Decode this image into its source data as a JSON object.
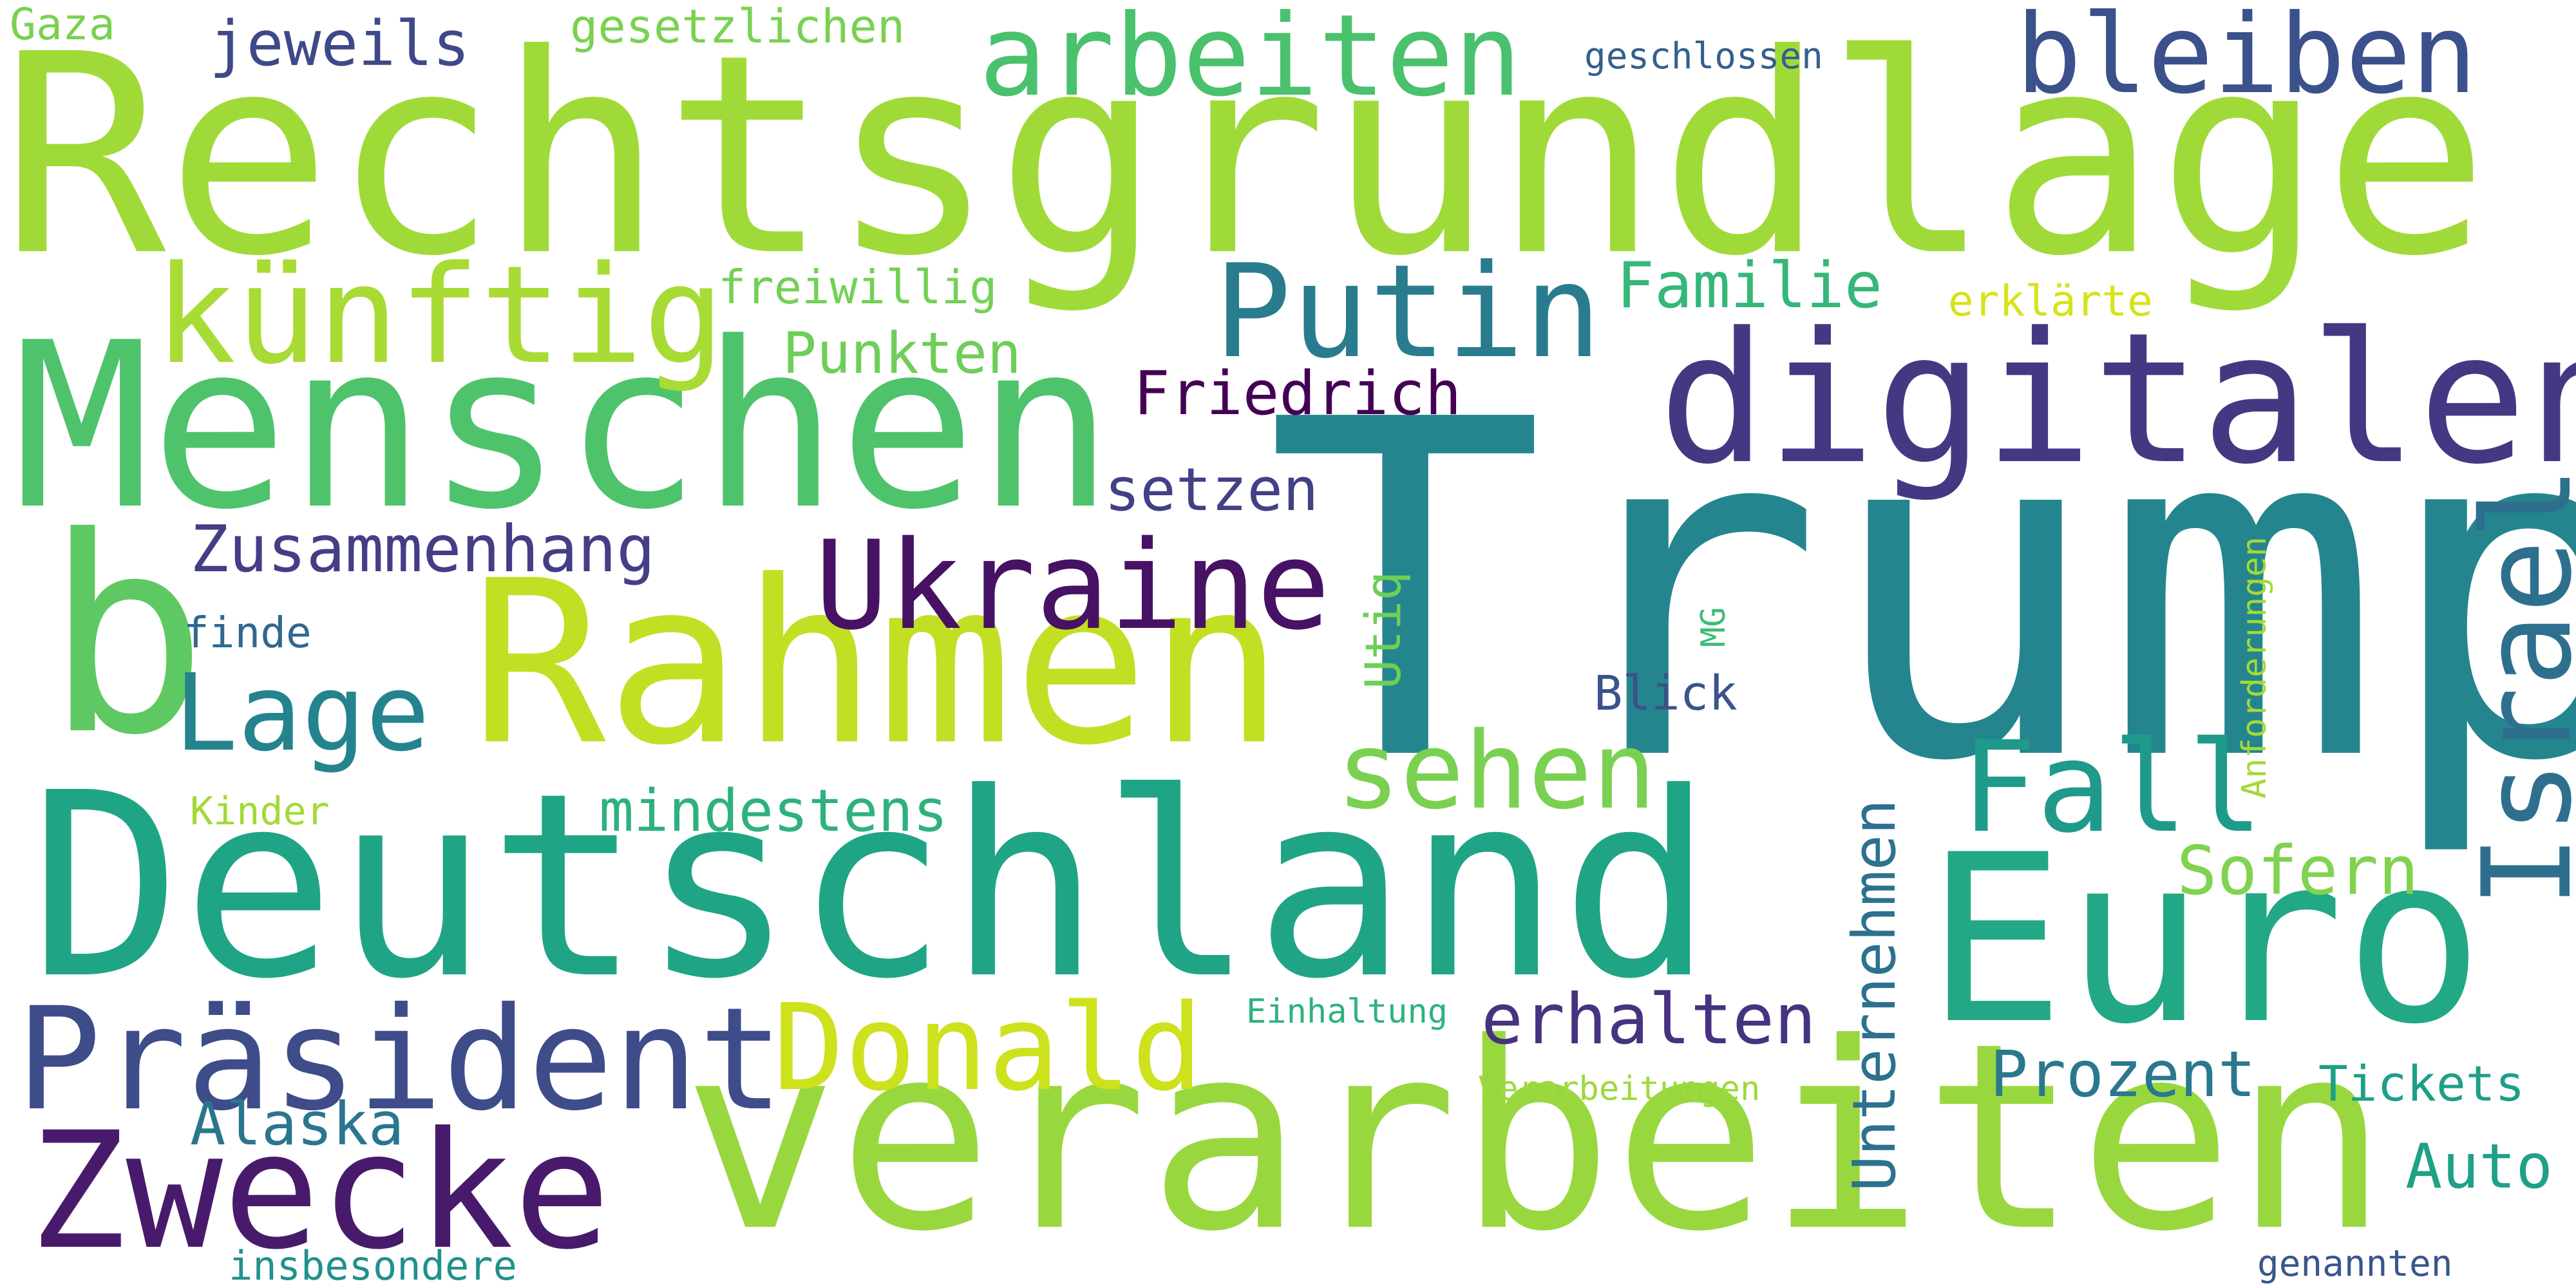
{
  "words": [
    {
      "text": "Trump",
      "color": "#25858e"
    },
    {
      "text": "Rechtsgrundlage",
      "color": "#a0da39"
    },
    {
      "text": "Deutschland",
      "color": "#20a486"
    },
    {
      "text": "verarbeiten",
      "color": "#98d83e"
    },
    {
      "text": "Menschen",
      "color": "#4ec36b"
    },
    {
      "text": "Rahmen",
      "color": "#c2df23"
    },
    {
      "text": "digitalen",
      "color": "#453882"
    },
    {
      "text": "Euro",
      "color": "#22a884"
    },
    {
      "text": "Israel",
      "color": "#2e6f8e"
    },
    {
      "text": "b",
      "color": "#5ec962"
    },
    {
      "text": "Zwecke",
      "color": "#481a6c"
    },
    {
      "text": "Präsident",
      "color": "#3e4c8a"
    },
    {
      "text": "Ukraine",
      "color": "#471164"
    },
    {
      "text": "Putin",
      "color": "#287c8e"
    },
    {
      "text": "künftig",
      "color": "#a8db34"
    },
    {
      "text": "arbeiten",
      "color": "#4ac16d"
    },
    {
      "text": "bleiben",
      "color": "#3b518b"
    },
    {
      "text": "Donald",
      "color": "#cde11d"
    },
    {
      "text": "Lage",
      "color": "#25838e"
    },
    {
      "text": "sehen",
      "color": "#7ad151"
    },
    {
      "text": "Fall",
      "color": "#1f9a8a"
    },
    {
      "text": "Unternehmen",
      "color": "#2c728e"
    },
    {
      "text": "Familie",
      "color": "#35b779"
    },
    {
      "text": "Zusammenhang",
      "color": "#433e85"
    },
    {
      "text": "Friedrich",
      "color": "#440154"
    },
    {
      "text": "Punkten",
      "color": "#6ece58"
    },
    {
      "text": "setzen",
      "color": "#424086"
    },
    {
      "text": "mindestens",
      "color": "#2db27d"
    },
    {
      "text": "erhalten",
      "color": "#46337f"
    },
    {
      "text": "Prozent",
      "color": "#2a788e"
    },
    {
      "text": "Sofern",
      "color": "#7fd34e"
    },
    {
      "text": "Alaska",
      "color": "#2a768e"
    },
    {
      "text": "Auto",
      "color": "#1fa088"
    },
    {
      "text": "Tickets",
      "color": "#1f9e89"
    },
    {
      "text": "jeweils",
      "color": "#3e4989"
    },
    {
      "text": "gesetzlichen",
      "color": "#7ad151"
    },
    {
      "text": "Gaza",
      "color": "#7ad151"
    },
    {
      "text": "geschlossen",
      "color": "#355f8d"
    },
    {
      "text": "freiwillig",
      "color": "#73d056"
    },
    {
      "text": "erklärte",
      "color": "#d8e219"
    },
    {
      "text": "Utiq",
      "color": "#6ece58"
    },
    {
      "text": "MG",
      "color": "#3dbc74"
    },
    {
      "text": "Anforderungen",
      "color": "#a2da37"
    },
    {
      "text": "finde",
      "color": "#31688e"
    },
    {
      "text": "Blick",
      "color": "#3b528b"
    },
    {
      "text": "Kinder",
      "color": "#a2da37"
    },
    {
      "text": "Einhaltung",
      "color": "#2db27d"
    },
    {
      "text": "Verarbeitungen",
      "color": "#9dd93b"
    },
    {
      "text": "insbesondere",
      "color": "#21918c"
    },
    {
      "text": "genannten",
      "color": "#39568c"
    }
  ]
}
